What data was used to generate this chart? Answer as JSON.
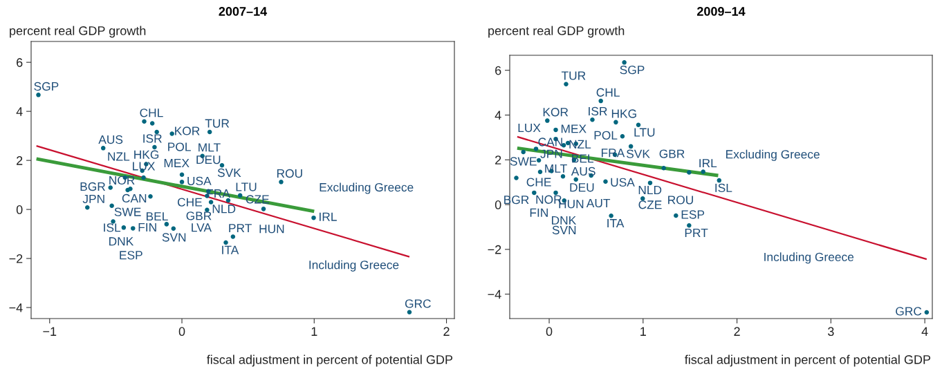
{
  "chart_data": [
    {
      "type": "scatter",
      "title": "2007–14",
      "ylabel": "percent real GDP growth",
      "xlabel": "fiscal adjustment in percent of potential GDP",
      "xlim": [
        -1.14,
        2.06
      ],
      "ylim": [
        -4.45,
        6.85
      ],
      "xticks": [
        -1,
        0,
        1,
        2
      ],
      "yticks": [
        -4,
        -2,
        0,
        2,
        4,
        6
      ],
      "grid": false,
      "series": [
        {
          "marker": "circle",
          "color": "#00677f",
          "x": [
            -1.085,
            -0.285,
            -0.224,
            -0.19,
            -0.075,
            0.21,
            -0.595,
            -0.207,
            0.155,
            0.303,
            -0.27,
            -0.3,
            -0.43,
            -0.29,
            0.0,
            0.0,
            -0.54,
            -0.41,
            -0.39,
            -0.238,
            -0.715,
            -0.53,
            -0.52,
            -0.44,
            -0.37,
            -0.116,
            -0.064,
            0.386,
            0.332,
            0.19,
            0.2,
            0.19,
            0.22,
            0.35,
            0.44,
            0.75,
            0.617,
            0.996,
            1.72
          ],
          "values": [
            4.67,
            3.59,
            3.51,
            3.16,
            3.09,
            3.16,
            2.5,
            2.54,
            2.18,
            1.8,
            1.85,
            1.58,
            1.3,
            1.3,
            1.42,
            1.12,
            0.89,
            0.79,
            0.84,
            0.53,
            0.08,
            0.15,
            -0.49,
            -0.74,
            -0.77,
            -0.6,
            -0.78,
            -1.11,
            -1.35,
            -0.02,
            0.74,
            0.55,
            0.3,
            0.37,
            0.57,
            1.12,
            0.02,
            -0.34,
            -4.19
          ]
        },
        {
          "type": "line",
          "color": "#c8102e",
          "x": [
            -1.1,
            1.72
          ],
          "values": [
            2.59,
            -1.93
          ]
        },
        {
          "type": "line",
          "color": "#3a9b3a",
          "x": [
            -1.1,
            1.0
          ],
          "values": [
            2.06,
            -0.08
          ]
        }
      ],
      "annotations": [
        {
          "text": "SGP",
          "x": -1.085,
          "y": 4.67
        },
        {
          "text": "CHL",
          "x": -0.285,
          "y": 3.59
        },
        {
          "text": "ISR",
          "x": -0.224,
          "y": 3.51
        },
        {
          "text": "KOR",
          "x": -0.19,
          "y": 3.16
        },
        {
          "text": "POL",
          "x": -0.075,
          "y": 3.09
        },
        {
          "text": "TUR",
          "x": 0.21,
          "y": 3.16
        },
        {
          "text": "AUS",
          "x": -0.595,
          "y": 2.5
        },
        {
          "text": "HKG",
          "x": -0.207,
          "y": 2.54
        },
        {
          "text": "MLT",
          "x": 0.155,
          "y": 2.18
        },
        {
          "text": "SVK",
          "x": 0.303,
          "y": 1.8
        },
        {
          "text": "MEX",
          "x": -0.27,
          "y": 1.85
        },
        {
          "text": "CAN",
          "x": -0.3,
          "y": 1.58
        },
        {
          "text": "NZL",
          "x": -0.43,
          "y": 1.3
        },
        {
          "text": "LUX",
          "x": -0.29,
          "y": 1.3
        },
        {
          "text": "CHE",
          "x": 0.0,
          "y": 1.42
        },
        {
          "text": "USA",
          "x": 0.0,
          "y": 1.12
        },
        {
          "text": "BGR",
          "x": -0.54,
          "y": 0.89
        },
        {
          "text": "SWE",
          "x": -0.41,
          "y": 0.79
        },
        {
          "text": "NOR",
          "x": -0.39,
          "y": 0.84
        },
        {
          "text": "BEL",
          "x": -0.238,
          "y": 0.53
        },
        {
          "text": "JPN",
          "x": -0.715,
          "y": 0.08
        },
        {
          "text": "ISL",
          "x": -0.53,
          "y": 0.15
        },
        {
          "text": "DNK",
          "x": -0.52,
          "y": -0.49
        },
        {
          "text": "ESP",
          "x": -0.44,
          "y": -0.74
        },
        {
          "text": "FIN",
          "x": -0.37,
          "y": -0.77
        },
        {
          "text": "SVN",
          "x": -0.116,
          "y": -0.6
        },
        {
          "text": "LVA",
          "x": -0.064,
          "y": -0.78
        },
        {
          "text": "PRT",
          "x": 0.386,
          "y": -1.11
        },
        {
          "text": "ITA",
          "x": 0.332,
          "y": -1.35
        },
        {
          "text": "NLD",
          "x": 0.19,
          "y": -0.02
        },
        {
          "text": "DEU",
          "x": 0.2,
          "y": 0.74
        },
        {
          "text": "GBR",
          "x": 0.19,
          "y": 0.55
        },
        {
          "text": "FRA",
          "x": 0.22,
          "y": 0.3
        },
        {
          "text": "CZE",
          "x": 0.35,
          "y": 0.37
        },
        {
          "text": "LTU",
          "x": 0.44,
          "y": 0.57
        },
        {
          "text": "ROU",
          "x": 0.75,
          "y": 1.12
        },
        {
          "text": "HUN",
          "x": 0.617,
          "y": 0.02
        },
        {
          "text": "IRL",
          "x": 0.996,
          "y": -0.34
        },
        {
          "text": "GRC",
          "x": 1.72,
          "y": -4.19
        },
        "Excluding Greece",
        "Including Greece"
      ]
    },
    {
      "type": "scatter",
      "title": "2009–14",
      "ylabel": "percent real GDP growth",
      "xlabel": "fiscal adjustment in percent of potential GDP",
      "xlim": [
        -0.42,
        4.08
      ],
      "ylim": [
        -5.09,
        6.67
      ],
      "xticks": [
        0,
        1,
        2,
        3,
        4
      ],
      "yticks": [
        -4,
        -2,
        0,
        2,
        4,
        6
      ],
      "grid": false,
      "series": [
        {
          "marker": "circle",
          "color": "#00677f",
          "x": [
            0.8,
            0.18,
            0.55,
            -0.02,
            0.46,
            0.71,
            0.95,
            0.07,
            0.78,
            0.87,
            0.07,
            0.2,
            0.155,
            0.285,
            -0.14,
            -0.275,
            0.7,
            -0.11,
            0.265,
            -0.096,
            0.025,
            0.147,
            0.285,
            0.447,
            -0.35,
            1.22,
            1.49,
            1.64,
            1.81,
            1.075,
            0.996,
            1.35,
            1.49,
            0.6,
            0.66,
            -0.16,
            0.07,
            0.16,
            4.02
          ],
          "values": [
            6.35,
            5.38,
            4.63,
            3.75,
            3.79,
            3.68,
            3.56,
            3.34,
            3.05,
            2.6,
            2.93,
            2.75,
            2.65,
            2.72,
            2.49,
            2.35,
            2.23,
            1.98,
            2.0,
            1.46,
            1.5,
            1.26,
            1.12,
            1.3,
            1.19,
            1.63,
            1.44,
            1.47,
            1.08,
            0.97,
            0.27,
            -0.49,
            -0.93,
            1.03,
            -0.5,
            0.53,
            0.53,
            0.18,
            -4.81
          ]
        },
        {
          "type": "line",
          "color": "#c8102e",
          "x": [
            -0.34,
            4.02
          ],
          "values": [
            3.03,
            -2.44
          ]
        },
        {
          "type": "line",
          "color": "#3a9b3a",
          "x": [
            -0.34,
            1.8
          ],
          "values": [
            2.52,
            1.3
          ]
        }
      ],
      "annotations": [
        {
          "text": "SGP",
          "x": 0.8,
          "y": 6.35
        },
        {
          "text": "TUR",
          "x": 0.18,
          "y": 5.38
        },
        {
          "text": "CHL",
          "x": 0.55,
          "y": 4.63
        },
        {
          "text": "KOR",
          "x": -0.02,
          "y": 3.75
        },
        {
          "text": "ISR",
          "x": 0.46,
          "y": 3.79
        },
        {
          "text": "HKG",
          "x": 0.71,
          "y": 3.68
        },
        {
          "text": "LTU",
          "x": 0.95,
          "y": 3.56
        },
        {
          "text": "MEX",
          "x": 0.07,
          "y": 3.34
        },
        {
          "text": "POL",
          "x": 0.78,
          "y": 3.05
        },
        {
          "text": "SVK",
          "x": 0.87,
          "y": 2.6
        },
        {
          "text": "MLT",
          "x": 0.07,
          "y": 2.93
        },
        {
          "text": "CAN",
          "x": 0.2,
          "y": 2.75
        },
        {
          "text": "NZL",
          "x": 0.155,
          "y": 2.65
        },
        {
          "text": "AUS",
          "x": 0.285,
          "y": 2.72
        },
        {
          "text": "LUX",
          "x": -0.14,
          "y": 2.49
        },
        {
          "text": "SWE",
          "x": -0.275,
          "y": 2.35
        },
        {
          "text": "USA",
          "x": 0.7,
          "y": 2.23
        },
        {
          "text": "CHE",
          "x": -0.11,
          "y": 1.98
        },
        {
          "text": "DEU",
          "x": 0.265,
          "y": 2.0
        },
        {
          "text": "NOR",
          "x": -0.096,
          "y": 1.46
        },
        {
          "text": "JPN",
          "x": 0.025,
          "y": 1.5
        },
        {
          "text": "HUN",
          "x": 0.147,
          "y": 1.26
        },
        {
          "text": "BEL",
          "x": 0.285,
          "y": 1.12
        },
        {
          "text": "AUT",
          "x": 0.447,
          "y": 1.3
        },
        {
          "text": "BGR",
          "x": -0.35,
          "y": 1.19
        },
        {
          "text": "GBR",
          "x": 1.22,
          "y": 1.63
        },
        {
          "text": "ROU",
          "x": 1.49,
          "y": 1.44
        },
        {
          "text": "IRL",
          "x": 1.64,
          "y": 1.47
        },
        {
          "text": "ISL",
          "x": 1.81,
          "y": 1.08
        },
        {
          "text": "CZE",
          "x": 1.075,
          "y": 0.97
        },
        {
          "text": "NLD",
          "x": 0.996,
          "y": 0.27
        },
        {
          "text": "ESP",
          "x": 1.35,
          "y": -0.49
        },
        {
          "text": "PRT",
          "x": 1.49,
          "y": -0.93
        },
        {
          "text": "FRA",
          "x": 0.6,
          "y": 1.03
        },
        {
          "text": "ITA",
          "x": 0.66,
          "y": -0.5
        },
        {
          "text": "FIN",
          "x": -0.16,
          "y": 0.53
        },
        {
          "text": "DNK",
          "x": 0.07,
          "y": 0.53
        },
        {
          "text": "SVN",
          "x": 0.16,
          "y": 0.18
        },
        {
          "text": "GRC",
          "x": 4.02,
          "y": -4.81
        },
        "Excluding Greece",
        "Including Greece"
      ]
    }
  ]
}
